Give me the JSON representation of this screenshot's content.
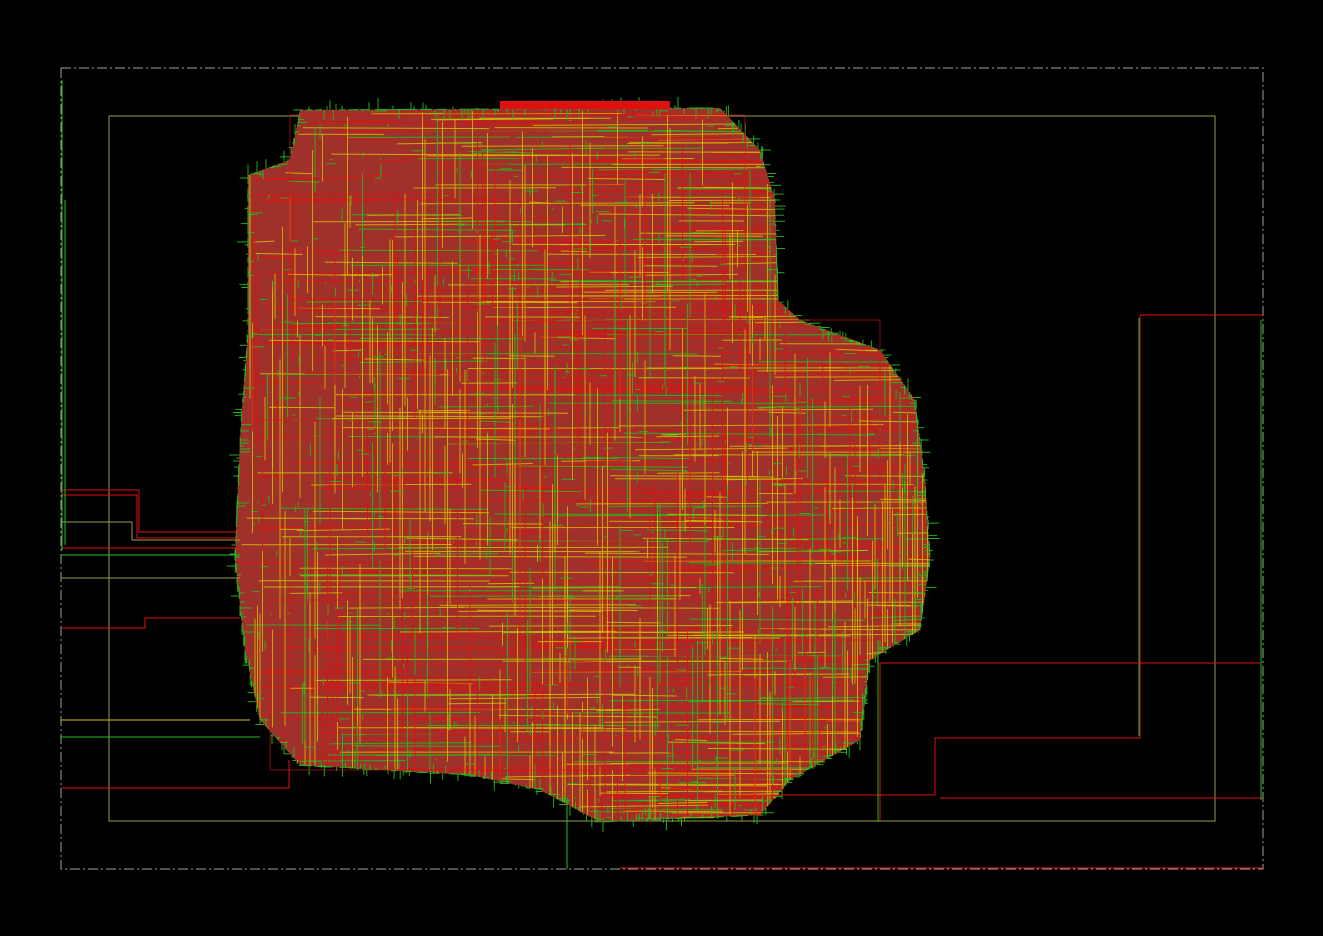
{
  "view": {
    "background": "#000000",
    "palette": {
      "metal_red": "#e01010",
      "metal_brown": "#a0302a",
      "metal_yellow": "#d4c000",
      "metal_green": "#20c020",
      "die_outline": "#a0a0a0",
      "core_outline": "#9a9a50"
    }
  },
  "layers": [
    {
      "name": "die-boundary",
      "color": "#a0a0a0",
      "style": "dash-dot"
    },
    {
      "name": "core-boundary",
      "color": "#9a9a50",
      "style": "solid"
    },
    {
      "name": "routing-metal-horizontal",
      "color": "#e01010"
    },
    {
      "name": "routing-metal-dense",
      "color": "#a0302a"
    },
    {
      "name": "routing-metal-vertical",
      "color": "#d4c000"
    },
    {
      "name": "routing-metal-top",
      "color": "#20c020"
    }
  ]
}
